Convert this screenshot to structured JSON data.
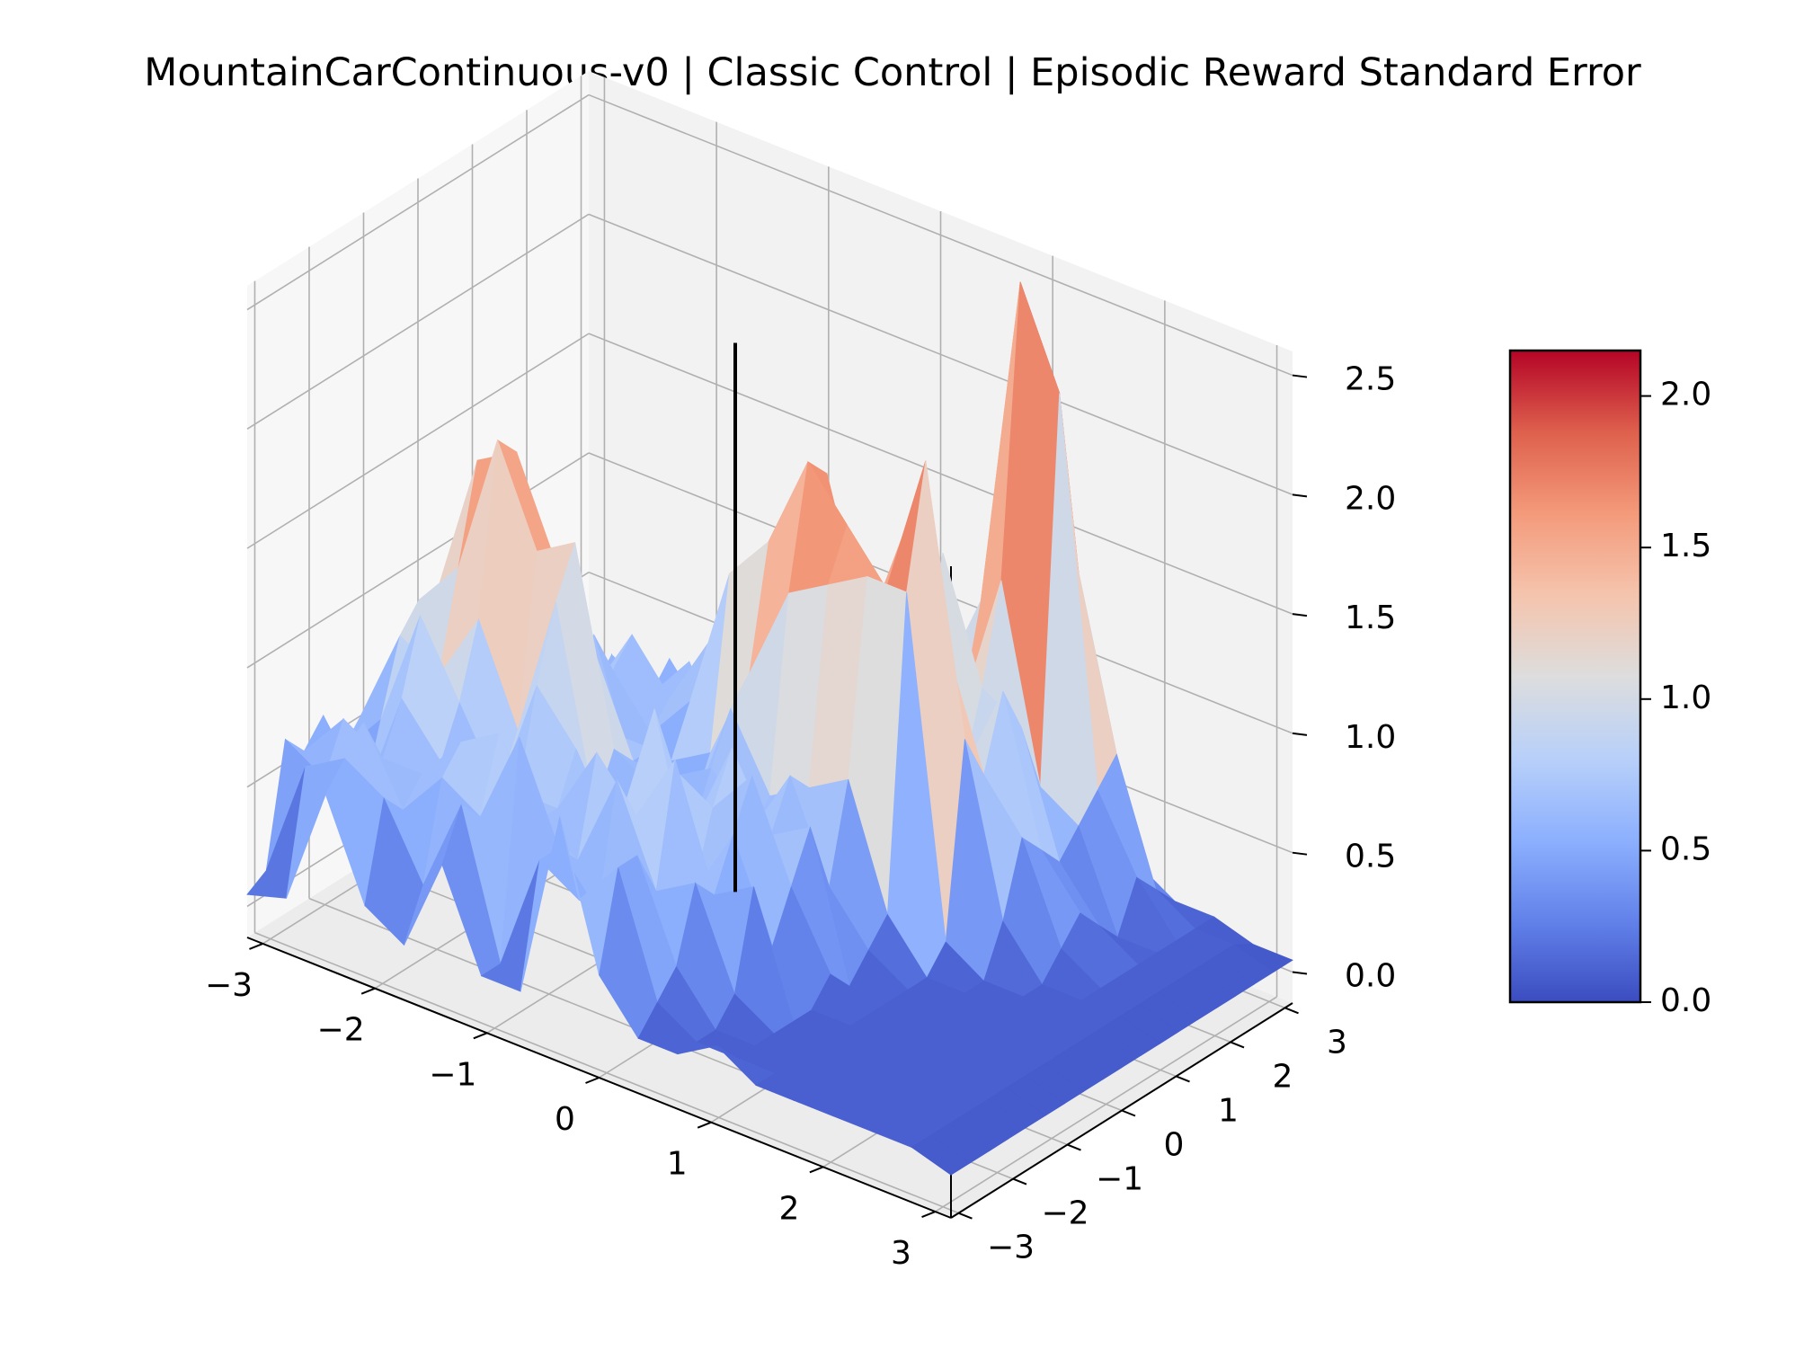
{
  "chart_data": {
    "type": "surface3d",
    "title": "MountainCarContinuous-v0 | Classic Control | Episodic Reward Standard Error",
    "xlabel": "",
    "ylabel": "",
    "zlabel": "",
    "xlim": [
      -3.14,
      3.14
    ],
    "ylim": [
      -3.14,
      3.14
    ],
    "zlim": [
      -0.13,
      2.6
    ],
    "x_ticks": [
      -3,
      -2,
      -1,
      0,
      1,
      2,
      3
    ],
    "y_ticks": [
      -3,
      -2,
      -1,
      0,
      1,
      2,
      3
    ],
    "z_ticks": [
      0.0,
      0.5,
      1.0,
      1.5,
      2.0,
      2.5
    ],
    "x_tick_labels": [
      "−3",
      "−2",
      "−1",
      "0",
      "1",
      "2",
      "3"
    ],
    "y_tick_labels": [
      "−3",
      "−2",
      "−1",
      "0",
      "1",
      "2",
      "3"
    ],
    "z_tick_labels": [
      "0.0",
      "0.5",
      "1.0",
      "1.5",
      "2.0",
      "2.5"
    ],
    "grid": true,
    "colormap": "coolwarm",
    "colorbar": {
      "range": [
        0.0,
        2.15
      ],
      "ticks": [
        0.0,
        0.5,
        1.0,
        1.5,
        2.0
      ],
      "tick_labels": [
        "0.0",
        "0.5",
        "1.0",
        "1.5",
        "2.0"
      ],
      "placement": "right"
    },
    "vertical_line": {
      "x": -0.6,
      "y": 0.6,
      "z_range": [
        0.0,
        2.3
      ],
      "color": "#000000"
    },
    "grid_x": [
      -3.14,
      -2.79,
      -2.44,
      -2.09,
      -1.74,
      -1.4,
      -1.05,
      -0.7,
      -0.35,
      0.0,
      0.35,
      0.7,
      1.05,
      1.4,
      1.74,
      2.09,
      2.44,
      2.79,
      3.14
    ],
    "grid_y": [
      -3.14,
      -2.79,
      -2.44,
      -2.09,
      -1.74,
      -1.4,
      -1.05,
      -0.7,
      -0.35,
      0.0,
      0.35,
      0.7,
      1.05,
      1.4,
      1.74,
      2.09,
      2.44,
      2.79,
      3.14
    ],
    "z": [
      [
        0.05,
        0.1,
        0.6,
        0.2,
        0.1,
        0.5,
        0.1,
        0.1,
        0.9,
        0.3,
        0.1,
        0.1,
        0.2,
        0.1,
        0.1,
        0.1,
        0.1,
        0.1,
        0.05
      ],
      [
        0.1,
        0.6,
        0.7,
        0.6,
        0.3,
        0.7,
        0.1,
        0.6,
        0.5,
        0.7,
        0.2,
        0.1,
        0.1,
        0.1,
        0.1,
        0.1,
        0.1,
        0.1,
        0.05
      ],
      [
        0.6,
        0.5,
        0.8,
        0.5,
        0.7,
        0.6,
        1.0,
        0.6,
        0.4,
        0.7,
        0.3,
        0.1,
        0.1,
        0.1,
        0.1,
        0.1,
        0.1,
        0.1,
        0.05
      ],
      [
        0.5,
        0.7,
        0.6,
        0.6,
        0.8,
        0.9,
        0.6,
        0.5,
        0.9,
        0.5,
        0.6,
        0.2,
        0.1,
        0.1,
        0.1,
        0.1,
        0.1,
        0.1,
        0.05
      ],
      [
        0.6,
        0.3,
        0.8,
        0.6,
        0.7,
        0.6,
        0.6,
        0.9,
        0.7,
        1.0,
        0.5,
        0.6,
        0.1,
        0.1,
        0.1,
        0.1,
        0.1,
        0.1,
        0.05
      ],
      [
        0.4,
        0.6,
        1.1,
        0.8,
        0.5,
        1.0,
        0.8,
        0.5,
        1.1,
        0.4,
        0.7,
        0.3,
        0.1,
        0.1,
        0.1,
        0.1,
        0.1,
        0.1,
        0.05
      ],
      [
        0.5,
        0.9,
        0.8,
        1.1,
        0.7,
        1.3,
        0.5,
        0.6,
        0.8,
        0.7,
        0.9,
        0.5,
        0.2,
        0.1,
        0.1,
        0.1,
        0.1,
        0.1,
        0.05
      ],
      [
        0.3,
        1.0,
        1.2,
        1.8,
        1.4,
        1.5,
        0.7,
        0.6,
        0.5,
        0.9,
        0.6,
        0.7,
        0.1,
        0.1,
        0.1,
        0.1,
        0.1,
        0.1,
        0.05
      ],
      [
        0.4,
        1.0,
        1.6,
        1.7,
        1.3,
        1.0,
        0.6,
        0.6,
        0.7,
        0.5,
        0.8,
        0.4,
        0.2,
        0.1,
        0.1,
        0.1,
        0.1,
        0.1,
        0.05
      ],
      [
        0.6,
        0.5,
        1.2,
        1.0,
        0.8,
        0.6,
        0.6,
        0.4,
        0.9,
        0.6,
        0.7,
        0.8,
        0.3,
        0.1,
        0.1,
        0.1,
        0.1,
        0.1,
        0.05
      ],
      [
        0.1,
        0.3,
        0.5,
        0.6,
        0.9,
        0.4,
        0.5,
        0.6,
        1.0,
        1.4,
        1.5,
        1.6,
        1.6,
        0.2,
        0.1,
        0.1,
        0.1,
        0.1,
        0.05
      ],
      [
        0.1,
        0.1,
        0.6,
        0.9,
        0.7,
        0.5,
        0.7,
        1.3,
        1.5,
        1.9,
        1.7,
        1.5,
        2.1,
        1.0,
        0.3,
        0.1,
        0.1,
        0.1,
        0.05
      ],
      [
        0.1,
        0.1,
        0.3,
        0.5,
        0.8,
        0.6,
        0.9,
        1.2,
        1.4,
        1.8,
        1.2,
        1.7,
        1.3,
        0.8,
        0.6,
        0.2,
        0.1,
        0.1,
        0.05
      ],
      [
        0.1,
        0.1,
        0.1,
        0.6,
        0.5,
        0.7,
        0.4,
        0.9,
        1.6,
        1.0,
        0.8,
        0.9,
        0.7,
        1.1,
        0.5,
        0.3,
        0.1,
        0.1,
        0.05
      ],
      [
        0.1,
        0.1,
        0.1,
        0.2,
        0.6,
        0.4,
        0.6,
        0.5,
        0.8,
        1.3,
        0.6,
        1.5,
        1.0,
        0.9,
        0.4,
        0.2,
        0.1,
        0.1,
        0.05
      ],
      [
        0.1,
        0.1,
        0.1,
        0.1,
        0.3,
        0.6,
        0.8,
        0.6,
        0.5,
        0.7,
        1.1,
        0.8,
        1.4,
        0.6,
        0.5,
        0.1,
        0.1,
        0.1,
        0.05
      ],
      [
        0.1,
        0.1,
        0.1,
        0.1,
        0.1,
        0.2,
        0.5,
        0.9,
        0.7,
        0.6,
        0.8,
        1.2,
        2.6,
        2.2,
        0.6,
        0.3,
        0.1,
        0.1,
        0.05
      ],
      [
        0.05,
        0.1,
        0.1,
        0.1,
        0.1,
        0.1,
        0.2,
        0.4,
        0.6,
        0.5,
        0.7,
        0.9,
        1.8,
        1.4,
        0.7,
        0.2,
        0.1,
        0.1,
        0.05
      ],
      [
        0.05,
        0.05,
        0.05,
        0.05,
        0.05,
        0.05,
        0.1,
        0.1,
        0.3,
        0.2,
        0.3,
        0.4,
        0.5,
        0.4,
        0.2,
        0.1,
        0.1,
        0.05,
        0.05
      ]
    ]
  }
}
